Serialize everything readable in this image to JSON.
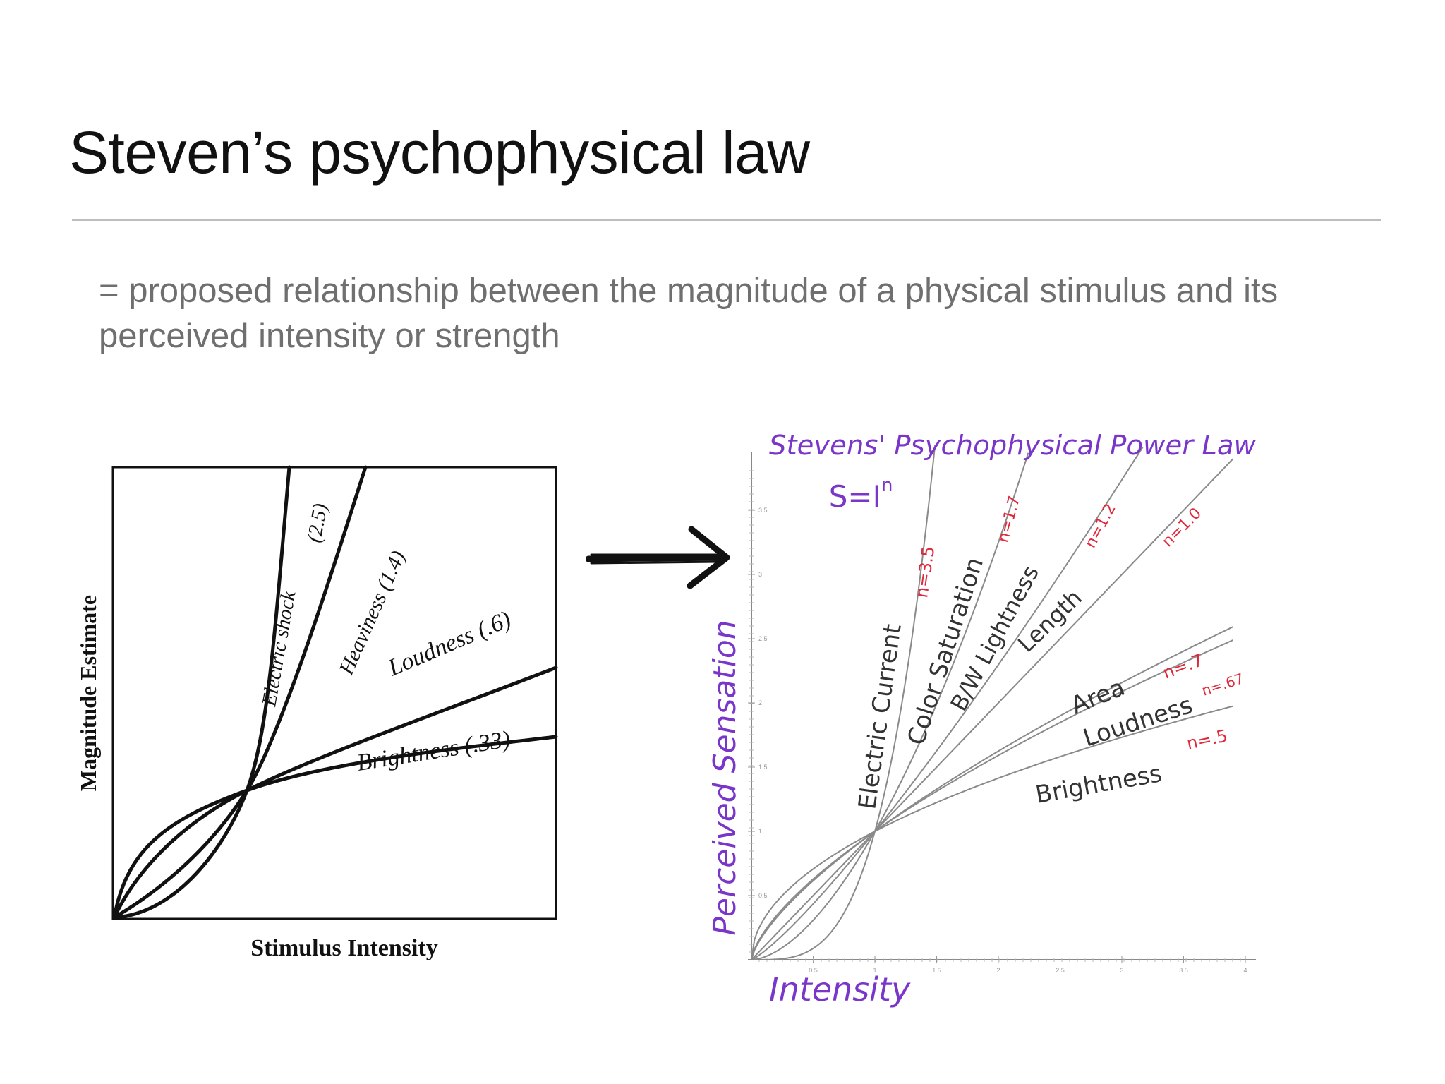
{
  "slide": {
    "title": "Steven’s psychophysical law",
    "definition": "= proposed relationship between the magnitude of a physical stimulus and its perceived intensity or strength"
  },
  "left_figure": {
    "ylabel": "Magnitude Estimate",
    "xlabel": "Stimulus Intensity",
    "curves": [
      {
        "name": "Electric shock",
        "exponent_label": "(2.5)"
      },
      {
        "name": "Heaviness (1.4)"
      },
      {
        "name": "Loudness (.6)"
      },
      {
        "name": "Brightness (.33)"
      }
    ]
  },
  "right_figure": {
    "title": "Stevens' Psychophysical Power Law",
    "formula_base": "S=I",
    "formula_exp": "n",
    "ylabel": "Perceived Sensation",
    "xlabel": "Intensity",
    "curves": [
      {
        "name": "Electric Current",
        "exponent": "n=3.5"
      },
      {
        "name": "Color Saturation",
        "exponent": "n=1.7"
      },
      {
        "name": "B/W Lightness",
        "exponent": "n=1.2"
      },
      {
        "name": "Length",
        "exponent": "n=1.0"
      },
      {
        "name": "Area",
        "exponent": "n=.7"
      },
      {
        "name": "Loudness",
        "exponent": "n=.67"
      },
      {
        "name": "Brightness",
        "exponent": "n=.5"
      }
    ],
    "x_ticks": [
      "0.5",
      "1",
      "1.5",
      "2",
      "2.5",
      "3",
      "3.5",
      "4"
    ],
    "y_ticks": [
      "0.5",
      "1",
      "1.5",
      "2",
      "2.5",
      "3",
      "3.5"
    ]
  },
  "colors": {
    "title": "#111111",
    "body_text": "#6f6f6f",
    "hand_purple": "#7a35c9",
    "hand_red": "#e0283a",
    "hand_gray": "#4a4a4a"
  }
}
